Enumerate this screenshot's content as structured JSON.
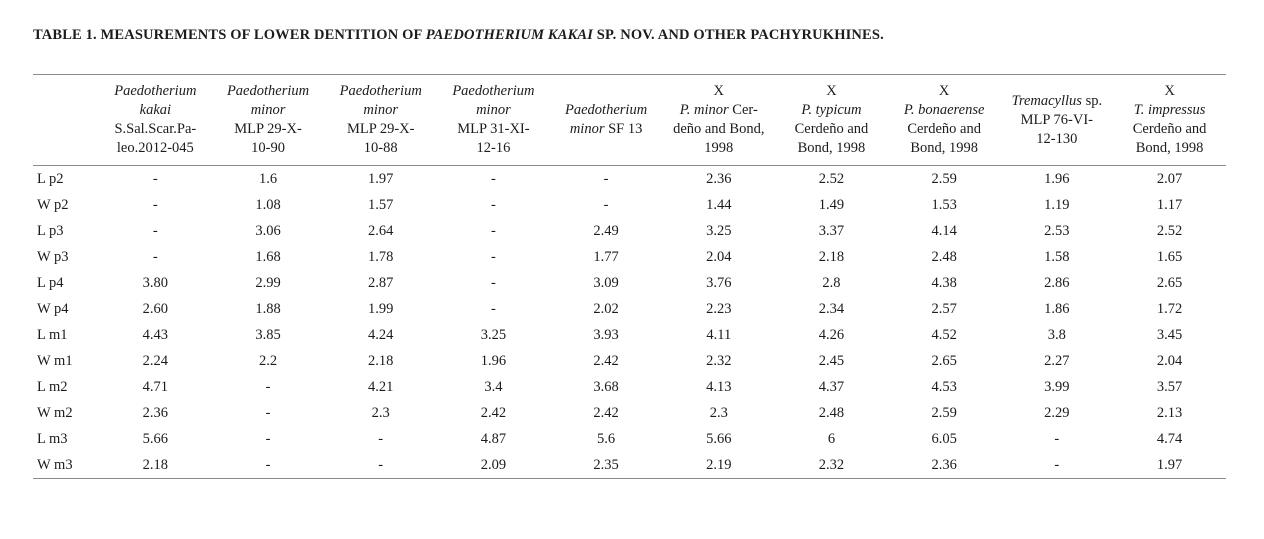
{
  "title": {
    "segments": [
      {
        "text": "TABLE 1. MEASUREMENTS OF LOWER DENTITION OF ",
        "italic": false
      },
      {
        "text": "PAEDOTHERIUM KAKAI",
        "italic": true
      },
      {
        "text": " SP. NOV. AND OTHER PACHYRUKHINES.",
        "italic": false
      }
    ]
  },
  "table": {
    "columns": [
      {
        "id": "tooth-measure",
        "lines": []
      },
      {
        "id": "paedotherium-kakai-ssalscar",
        "lines": [
          [
            {
              "text": "Paedotherium",
              "italic": true
            }
          ],
          [
            {
              "text": "kakai",
              "italic": true
            }
          ],
          [
            {
              "text": "S.Sal.Scar.Pa-",
              "italic": false
            }
          ],
          [
            {
              "text": "leo.2012-045",
              "italic": false
            }
          ]
        ]
      },
      {
        "id": "paedotherium-minor-mlp-29-x-10-90",
        "lines": [
          [
            {
              "text": "Paedotherium",
              "italic": true
            }
          ],
          [
            {
              "text": "minor",
              "italic": true
            }
          ],
          [
            {
              "text": "MLP 29-X-",
              "italic": false
            }
          ],
          [
            {
              "text": "10-90",
              "italic": false
            }
          ]
        ]
      },
      {
        "id": "paedotherium-minor-mlp-29-x-10-88",
        "lines": [
          [
            {
              "text": "Paedotherium",
              "italic": true
            }
          ],
          [
            {
              "text": "minor",
              "italic": true
            }
          ],
          [
            {
              "text": "MLP 29-X-",
              "italic": false
            }
          ],
          [
            {
              "text": "10-88",
              "italic": false
            }
          ]
        ]
      },
      {
        "id": "paedotherium-minor-mlp-31-xi-12-16",
        "lines": [
          [
            {
              "text": "Paedotherium",
              "italic": true
            }
          ],
          [
            {
              "text": "minor",
              "italic": true
            }
          ],
          [
            {
              "text": "MLP 31-XI-",
              "italic": false
            }
          ],
          [
            {
              "text": "12-16",
              "italic": false
            }
          ]
        ]
      },
      {
        "id": "paedotherium-minor-sf-13",
        "lines": [
          [
            {
              "text": "Paedotherium",
              "italic": true
            }
          ],
          [
            {
              "text": "minor ",
              "italic": true
            },
            {
              "text": "SF 13",
              "italic": false
            }
          ]
        ]
      },
      {
        "id": "x-p-minor-cerdeno-bond-1998",
        "lines": [
          [
            {
              "text": "X",
              "italic": false
            }
          ],
          [
            {
              "text": "P. minor",
              "italic": true
            },
            {
              "text": " Cer-",
              "italic": false
            }
          ],
          [
            {
              "text": "deño and Bond,",
              "italic": false
            }
          ],
          [
            {
              "text": "1998",
              "italic": false
            }
          ]
        ]
      },
      {
        "id": "x-p-typicum-cerdeno-bond-1998",
        "lines": [
          [
            {
              "text": "X",
              "italic": false
            }
          ],
          [
            {
              "text": "P. typicum",
              "italic": true
            }
          ],
          [
            {
              "text": "Cerdeño and",
              "italic": false
            }
          ],
          [
            {
              "text": "Bond, 1998",
              "italic": false
            }
          ]
        ]
      },
      {
        "id": "x-p-bonaerense-cerdeno-bond-1998",
        "lines": [
          [
            {
              "text": "X",
              "italic": false
            }
          ],
          [
            {
              "text": "P. bonaerense",
              "italic": true
            }
          ],
          [
            {
              "text": "Cerdeño and",
              "italic": false
            }
          ],
          [
            {
              "text": "Bond, 1998",
              "italic": false
            }
          ]
        ]
      },
      {
        "id": "tremacyllus-sp-mlp-76-vi-12-130",
        "lines": [
          [
            {
              "text": "Tremacyllus",
              "italic": true
            },
            {
              "text": " sp.",
              "italic": false
            }
          ],
          [
            {
              "text": "MLP 76-VI-",
              "italic": false
            }
          ],
          [
            {
              "text": "12-130",
              "italic": false
            }
          ]
        ]
      },
      {
        "id": "x-t-impressus-cerdeno-bond-1998",
        "lines": [
          [
            {
              "text": "X",
              "italic": false
            }
          ],
          [
            {
              "text": "T. impressus",
              "italic": true
            }
          ],
          [
            {
              "text": "Cerdeño and",
              "italic": false
            }
          ],
          [
            {
              "text": "Bond, 1998",
              "italic": false
            }
          ]
        ]
      }
    ],
    "rows": [
      {
        "label": "L p2",
        "values": [
          "-",
          "1.6",
          "1.97",
          "-",
          "-",
          "2.36",
          "2.52",
          "2.59",
          "1.96",
          "2.07"
        ]
      },
      {
        "label": "W p2",
        "values": [
          "-",
          "1.08",
          "1.57",
          "-",
          "-",
          "1.44",
          "1.49",
          "1.53",
          "1.19",
          "1.17"
        ]
      },
      {
        "label": "L p3",
        "values": [
          "-",
          "3.06",
          "2.64",
          "-",
          "2.49",
          "3.25",
          "3.37",
          "4.14",
          "2.53",
          "2.52"
        ]
      },
      {
        "label": "W p3",
        "values": [
          "-",
          "1.68",
          "1.78",
          "-",
          "1.77",
          "2.04",
          "2.18",
          "2.48",
          "1.58",
          "1.65"
        ]
      },
      {
        "label": "L p4",
        "values": [
          "3.80",
          "2.99",
          "2.87",
          "-",
          "3.09",
          "3.76",
          "2.8",
          "4.38",
          "2.86",
          "2.65"
        ]
      },
      {
        "label": "W p4",
        "values": [
          "2.60",
          "1.88",
          "1.99",
          "-",
          "2.02",
          "2.23",
          "2.34",
          "2.57",
          "1.86",
          "1.72"
        ]
      },
      {
        "label": "L m1",
        "values": [
          "4.43",
          "3.85",
          "4.24",
          "3.25",
          "3.93",
          "4.11",
          "4.26",
          "4.52",
          "3.8",
          "3.45"
        ]
      },
      {
        "label": "W m1",
        "values": [
          "2.24",
          "2.2",
          "2.18",
          "1.96",
          "2.42",
          "2.32",
          "2.45",
          "2.65",
          "2.27",
          "2.04"
        ]
      },
      {
        "label": "L m2",
        "values": [
          "4.71",
          "-",
          "4.21",
          "3.4",
          "3.68",
          "4.13",
          "4.37",
          "4.53",
          "3.99",
          "3.57"
        ]
      },
      {
        "label": "W m2",
        "values": [
          "2.36",
          "-",
          "2.3",
          "2.42",
          "2.42",
          "2.3",
          "2.48",
          "2.59",
          "2.29",
          "2.13"
        ]
      },
      {
        "label": "L m3",
        "values": [
          "5.66",
          "-",
          "-",
          "4.87",
          "5.6",
          "5.66",
          "6",
          "6.05",
          "-",
          "4.74"
        ]
      },
      {
        "label": "W m3",
        "values": [
          "2.18",
          "-",
          "-",
          "2.09",
          "2.35",
          "2.19",
          "2.32",
          "2.36",
          "-",
          "1.97"
        ]
      }
    ]
  }
}
